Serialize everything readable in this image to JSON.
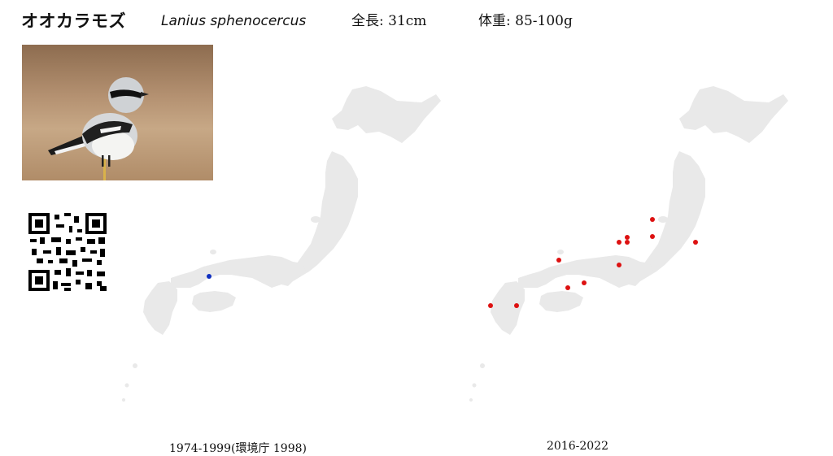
{
  "species": {
    "name_jp": "オオカラモズ",
    "name_sci": "Lanius sphenocercus",
    "length": "全長: 31cm",
    "weight": "体重: 85-100g"
  },
  "maps": [
    {
      "caption": "1974-1999(環境庁 1998)",
      "dot_color": "#1030c0",
      "records": 1
    },
    {
      "caption": "2016-2022",
      "dot_color": "#dd1111",
      "records": 12
    }
  ],
  "colors": {
    "land": "#e9e9e9",
    "background": "#ffffff"
  },
  "icons": [
    "qr-code-icon"
  ]
}
